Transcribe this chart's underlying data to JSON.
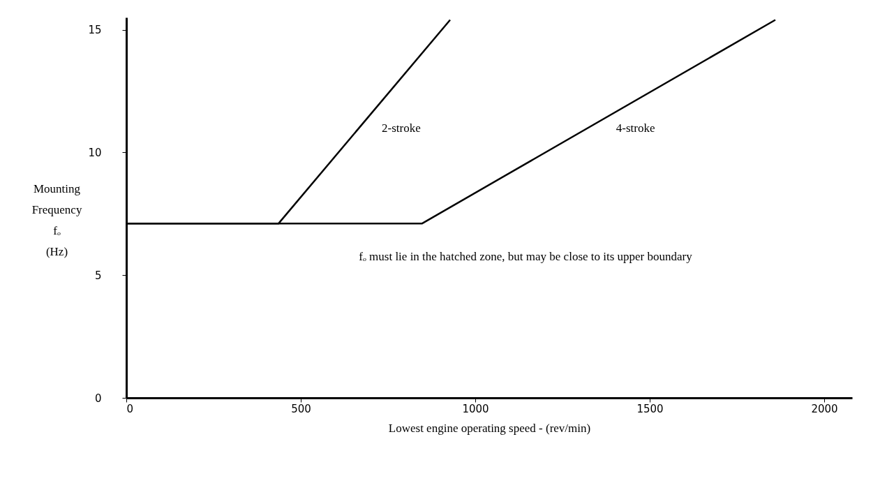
{
  "chart_data": {
    "type": "line",
    "xlabel": "Lowest engine operating speed - (rev/min)",
    "ylabel": "Mounting Frequency fₒ (Hz)",
    "series": [
      {
        "name": "2-stroke",
        "color": "#000000",
        "x": [
          0,
          436,
          928
        ],
        "values": [
          7.1,
          7.1,
          15.4
        ]
      },
      {
        "name": "4-stroke",
        "color": "#000000",
        "x": [
          0,
          847,
          1860
        ],
        "values": [
          7.1,
          7.1,
          15.4
        ]
      }
    ],
    "xlim": [
      0,
      2080
    ],
    "ylim": [
      0,
      15.5
    ],
    "xticks": [
      0,
      500,
      1000,
      1500,
      2000
    ],
    "yticks": [
      0,
      5,
      10,
      15
    ],
    "grid": false,
    "legend": false,
    "line_style": "solid",
    "marker": "none",
    "annotations": [
      "fₒ must lie in the hatched zone, but may be close to its upper boundary"
    ]
  }
}
